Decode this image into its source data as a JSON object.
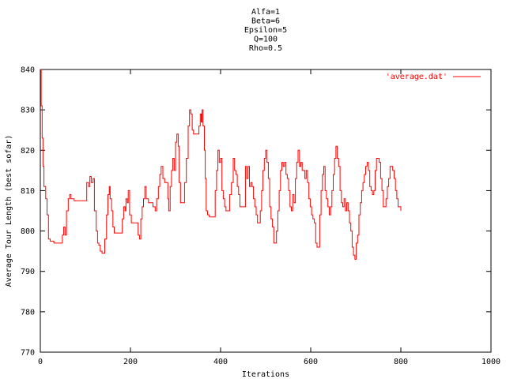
{
  "chart_data": {
    "type": "line",
    "title_lines": [
      "Alfa=1",
      "Beta=6",
      "Epsilon=5",
      "Q=100",
      "Rho=0.5"
    ],
    "xlabel": "Iterations",
    "ylabel": "Average Tour Length (best sofar)",
    "xlim": [
      0,
      1000
    ],
    "ylim": [
      770,
      840
    ],
    "x_ticks": [
      0,
      200,
      400,
      600,
      800,
      1000
    ],
    "y_ticks": [
      770,
      780,
      790,
      800,
      810,
      820,
      830,
      840
    ],
    "grid": false,
    "legend_position": "top-right",
    "series": [
      {
        "name": "'average.dat'",
        "color": "#ff0000",
        "points": [
          [
            0,
            840
          ],
          [
            2,
            831
          ],
          [
            4,
            823
          ],
          [
            6,
            816
          ],
          [
            8,
            811
          ],
          [
            12,
            808
          ],
          [
            15,
            804
          ],
          [
            18,
            798
          ],
          [
            22,
            797.5
          ],
          [
            30,
            797
          ],
          [
            40,
            797
          ],
          [
            47,
            797
          ],
          [
            49,
            799
          ],
          [
            52,
            801
          ],
          [
            55,
            799
          ],
          [
            58,
            805
          ],
          [
            62,
            808
          ],
          [
            65,
            809
          ],
          [
            68,
            808
          ],
          [
            75,
            807.5
          ],
          [
            85,
            807.5
          ],
          [
            95,
            807.5
          ],
          [
            100,
            807.5
          ],
          [
            103,
            812
          ],
          [
            107,
            811
          ],
          [
            110,
            813.5
          ],
          [
            113,
            812
          ],
          [
            117,
            813
          ],
          [
            120,
            805
          ],
          [
            124,
            800
          ],
          [
            127,
            797
          ],
          [
            130,
            796.5
          ],
          [
            133,
            795
          ],
          [
            137,
            794.5
          ],
          [
            140,
            794.5
          ],
          [
            143,
            798
          ],
          [
            147,
            804
          ],
          [
            150,
            809
          ],
          [
            153,
            811
          ],
          [
            155,
            808
          ],
          [
            158,
            805
          ],
          [
            161,
            801
          ],
          [
            164,
            799.5
          ],
          [
            170,
            799.5
          ],
          [
            178,
            799.5
          ],
          [
            182,
            803
          ],
          [
            185,
            806
          ],
          [
            188,
            805
          ],
          [
            190,
            808
          ],
          [
            193,
            807
          ],
          [
            195,
            810
          ],
          [
            198,
            804
          ],
          [
            202,
            802
          ],
          [
            208,
            802
          ],
          [
            214,
            802
          ],
          [
            217,
            799
          ],
          [
            220,
            798
          ],
          [
            223,
            803
          ],
          [
            226,
            806
          ],
          [
            229,
            808
          ],
          [
            232,
            811
          ],
          [
            235,
            808
          ],
          [
            240,
            807
          ],
          [
            246,
            807
          ],
          [
            250,
            806
          ],
          [
            255,
            805
          ],
          [
            258,
            808
          ],
          [
            262,
            811
          ],
          [
            265,
            814
          ],
          [
            268,
            816
          ],
          [
            272,
            813
          ],
          [
            276,
            812
          ],
          [
            280,
            812
          ],
          [
            283,
            808
          ],
          [
            285,
            805
          ],
          [
            288,
            811
          ],
          [
            291,
            815
          ],
          [
            294,
            818
          ],
          [
            297,
            815
          ],
          [
            300,
            822
          ],
          [
            303,
            824
          ],
          [
            306,
            821
          ],
          [
            308,
            812
          ],
          [
            311,
            807
          ],
          [
            314,
            807
          ],
          [
            318,
            807
          ],
          [
            320,
            812
          ],
          [
            324,
            818
          ],
          [
            328,
            826
          ],
          [
            331,
            830
          ],
          [
            334,
            829
          ],
          [
            337,
            825
          ],
          [
            340,
            824
          ],
          [
            346,
            824
          ],
          [
            352,
            826
          ],
          [
            355,
            829
          ],
          [
            357,
            827
          ],
          [
            359,
            830
          ],
          [
            361,
            826
          ],
          [
            364,
            820
          ],
          [
            366,
            813
          ],
          [
            368,
            805
          ],
          [
            371,
            804
          ],
          [
            375,
            803.5
          ],
          [
            382,
            803.5
          ],
          [
            385,
            803.5
          ],
          [
            388,
            810
          ],
          [
            391,
            815
          ],
          [
            394,
            820
          ],
          [
            397,
            817
          ],
          [
            400,
            818
          ],
          [
            403,
            810
          ],
          [
            406,
            808
          ],
          [
            409,
            806
          ],
          [
            412,
            805
          ],
          [
            416,
            805
          ],
          [
            420,
            809
          ],
          [
            424,
            812
          ],
          [
            428,
            818
          ],
          [
            431,
            815
          ],
          [
            434,
            814
          ],
          [
            437,
            811
          ],
          [
            440,
            809
          ],
          [
            443,
            806
          ],
          [
            446,
            806
          ],
          [
            450,
            806
          ],
          [
            453,
            806
          ],
          [
            455,
            816
          ],
          [
            458,
            813
          ],
          [
            461,
            816
          ],
          [
            464,
            811
          ],
          [
            467,
            812
          ],
          [
            470,
            811
          ],
          [
            473,
            808
          ],
          [
            476,
            806
          ],
          [
            479,
            804
          ],
          [
            482,
            802
          ],
          [
            486,
            802
          ],
          [
            488,
            805
          ],
          [
            491,
            810
          ],
          [
            494,
            815
          ],
          [
            497,
            818
          ],
          [
            500,
            820
          ],
          [
            503,
            817
          ],
          [
            506,
            813
          ],
          [
            509,
            806
          ],
          [
            512,
            803
          ],
          [
            515,
            801
          ],
          [
            518,
            797
          ],
          [
            521,
            797
          ],
          [
            524,
            800
          ],
          [
            527,
            805
          ],
          [
            530,
            810
          ],
          [
            533,
            815
          ],
          [
            536,
            817
          ],
          [
            539,
            816
          ],
          [
            542,
            817
          ],
          [
            545,
            814
          ],
          [
            548,
            813
          ],
          [
            551,
            810
          ],
          [
            554,
            806
          ],
          [
            557,
            805
          ],
          [
            560,
            809
          ],
          [
            563,
            807
          ],
          [
            566,
            813
          ],
          [
            569,
            817
          ],
          [
            572,
            820
          ],
          [
            575,
            816
          ],
          [
            578,
            817
          ],
          [
            581,
            815
          ],
          [
            584,
            815
          ],
          [
            587,
            813
          ],
          [
            590,
            815
          ],
          [
            593,
            812
          ],
          [
            596,
            808
          ],
          [
            599,
            806
          ],
          [
            602,
            804
          ],
          [
            605,
            803
          ],
          [
            608,
            802
          ],
          [
            611,
            797
          ],
          [
            614,
            796
          ],
          [
            617,
            796
          ],
          [
            620,
            804
          ],
          [
            623,
            810
          ],
          [
            626,
            814
          ],
          [
            629,
            816
          ],
          [
            632,
            810
          ],
          [
            635,
            808
          ],
          [
            638,
            806
          ],
          [
            641,
            804
          ],
          [
            644,
            806
          ],
          [
            647,
            810
          ],
          [
            650,
            814
          ],
          [
            653,
            818
          ],
          [
            656,
            821
          ],
          [
            659,
            818
          ],
          [
            662,
            816
          ],
          [
            665,
            810
          ],
          [
            668,
            807
          ],
          [
            671,
            806
          ],
          [
            674,
            808
          ],
          [
            677,
            805
          ],
          [
            680,
            807
          ],
          [
            683,
            805
          ],
          [
            686,
            802
          ],
          [
            689,
            800
          ],
          [
            692,
            796
          ],
          [
            695,
            794
          ],
          [
            698,
            793
          ],
          [
            701,
            797
          ],
          [
            704,
            799
          ],
          [
            707,
            804
          ],
          [
            710,
            807
          ],
          [
            713,
            810
          ],
          [
            716,
            812
          ],
          [
            719,
            814
          ],
          [
            722,
            816
          ],
          [
            725,
            817
          ],
          [
            728,
            815
          ],
          [
            731,
            811
          ],
          [
            734,
            810
          ],
          [
            737,
            809
          ],
          [
            740,
            810
          ],
          [
            743,
            815
          ],
          [
            746,
            818
          ],
          [
            749,
            818
          ],
          [
            752,
            817
          ],
          [
            755,
            813
          ],
          [
            758,
            810
          ],
          [
            761,
            806
          ],
          [
            764,
            806
          ],
          [
            767,
            808
          ],
          [
            770,
            811
          ],
          [
            773,
            813
          ],
          [
            776,
            816
          ],
          [
            779,
            816
          ],
          [
            782,
            815
          ],
          [
            785,
            813
          ],
          [
            788,
            810
          ],
          [
            791,
            808
          ],
          [
            794,
            806
          ],
          [
            797,
            806
          ],
          [
            800,
            805
          ]
        ]
      }
    ]
  }
}
